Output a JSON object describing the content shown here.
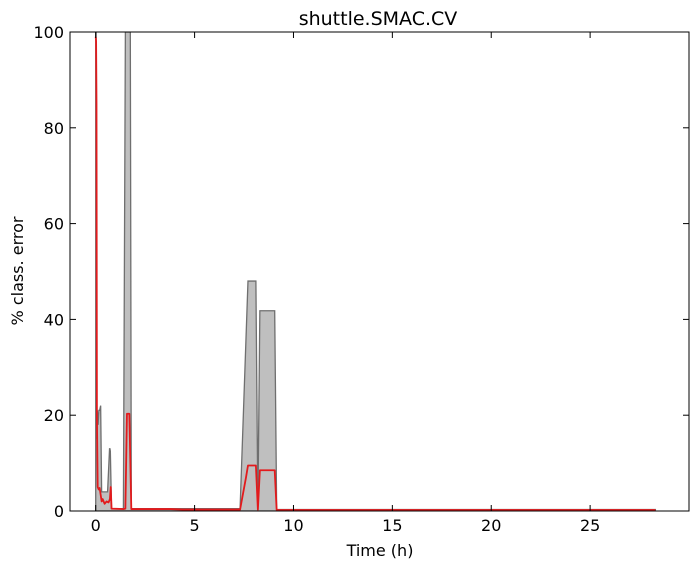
{
  "chart_data": {
    "type": "area",
    "title": "shuttle.SMAC.CV",
    "xlabel": "Time (h)",
    "ylabel": "% class. error",
    "xlim": [
      -1.3,
      30.0
    ],
    "ylim": [
      0,
      100
    ],
    "xticks": [
      0,
      5,
      10,
      15,
      20,
      25
    ],
    "yticks": [
      0,
      20,
      40,
      60,
      80,
      100
    ],
    "grid": false,
    "series": [
      {
        "kind": "band",
        "fill": "#bfbfbf",
        "stroke": "#6f6f6f",
        "x": [
          0,
          0.02,
          0.04,
          0.06,
          0.08,
          0.12,
          0.16,
          0.2,
          0.25,
          0.3,
          0.35,
          0.4,
          0.6,
          0.7,
          0.72,
          0.74,
          0.8,
          1.0,
          1.4,
          1.5,
          1.55,
          1.75,
          1.8,
          3.8,
          4.4,
          7.3,
          7.7,
          8.1,
          8.2,
          8.3,
          9.05,
          9.15,
          28.3
        ],
        "upper": [
          100,
          100,
          60,
          15,
          21,
          18,
          21,
          21,
          22,
          4,
          4,
          4,
          4,
          13,
          13,
          12.5,
          0.5,
          0.5,
          0.5,
          100,
          100,
          100,
          0.5,
          0.5,
          0.5,
          0.5,
          48,
          48,
          0.3,
          41.8,
          41.8,
          0.3,
          0.3
        ],
        "lower": [
          0,
          0,
          0,
          0,
          0,
          0,
          0,
          0,
          0,
          0,
          0,
          0,
          0,
          0,
          0,
          0,
          0,
          0,
          0,
          0,
          0,
          0,
          0,
          0,
          0,
          0,
          0,
          0,
          0,
          0,
          0,
          0,
          0
        ]
      },
      {
        "kind": "line",
        "color": "#e31a1c",
        "x": [
          0,
          0.02,
          0.04,
          0.06,
          0.1,
          0.15,
          0.2,
          0.3,
          0.35,
          0.45,
          0.55,
          0.65,
          0.72,
          0.76,
          0.8,
          1.4,
          1.5,
          1.58,
          1.7,
          1.8,
          2.0,
          3.8,
          4.4,
          7.3,
          7.6,
          7.7,
          8.1,
          8.2,
          8.3,
          9.05,
          9.15,
          28.3
        ],
        "y": [
          99,
          98,
          85,
          20,
          5,
          4.5,
          4.8,
          2,
          2.5,
          1.5,
          2,
          1.8,
          2.5,
          5,
          0.5,
          0.4,
          0.5,
          20.3,
          20.3,
          0.4,
          0.4,
          0.4,
          0.3,
          0.3,
          7,
          9.5,
          9.5,
          0.3,
          8.5,
          8.5,
          0.2,
          0.2
        ]
      }
    ]
  }
}
